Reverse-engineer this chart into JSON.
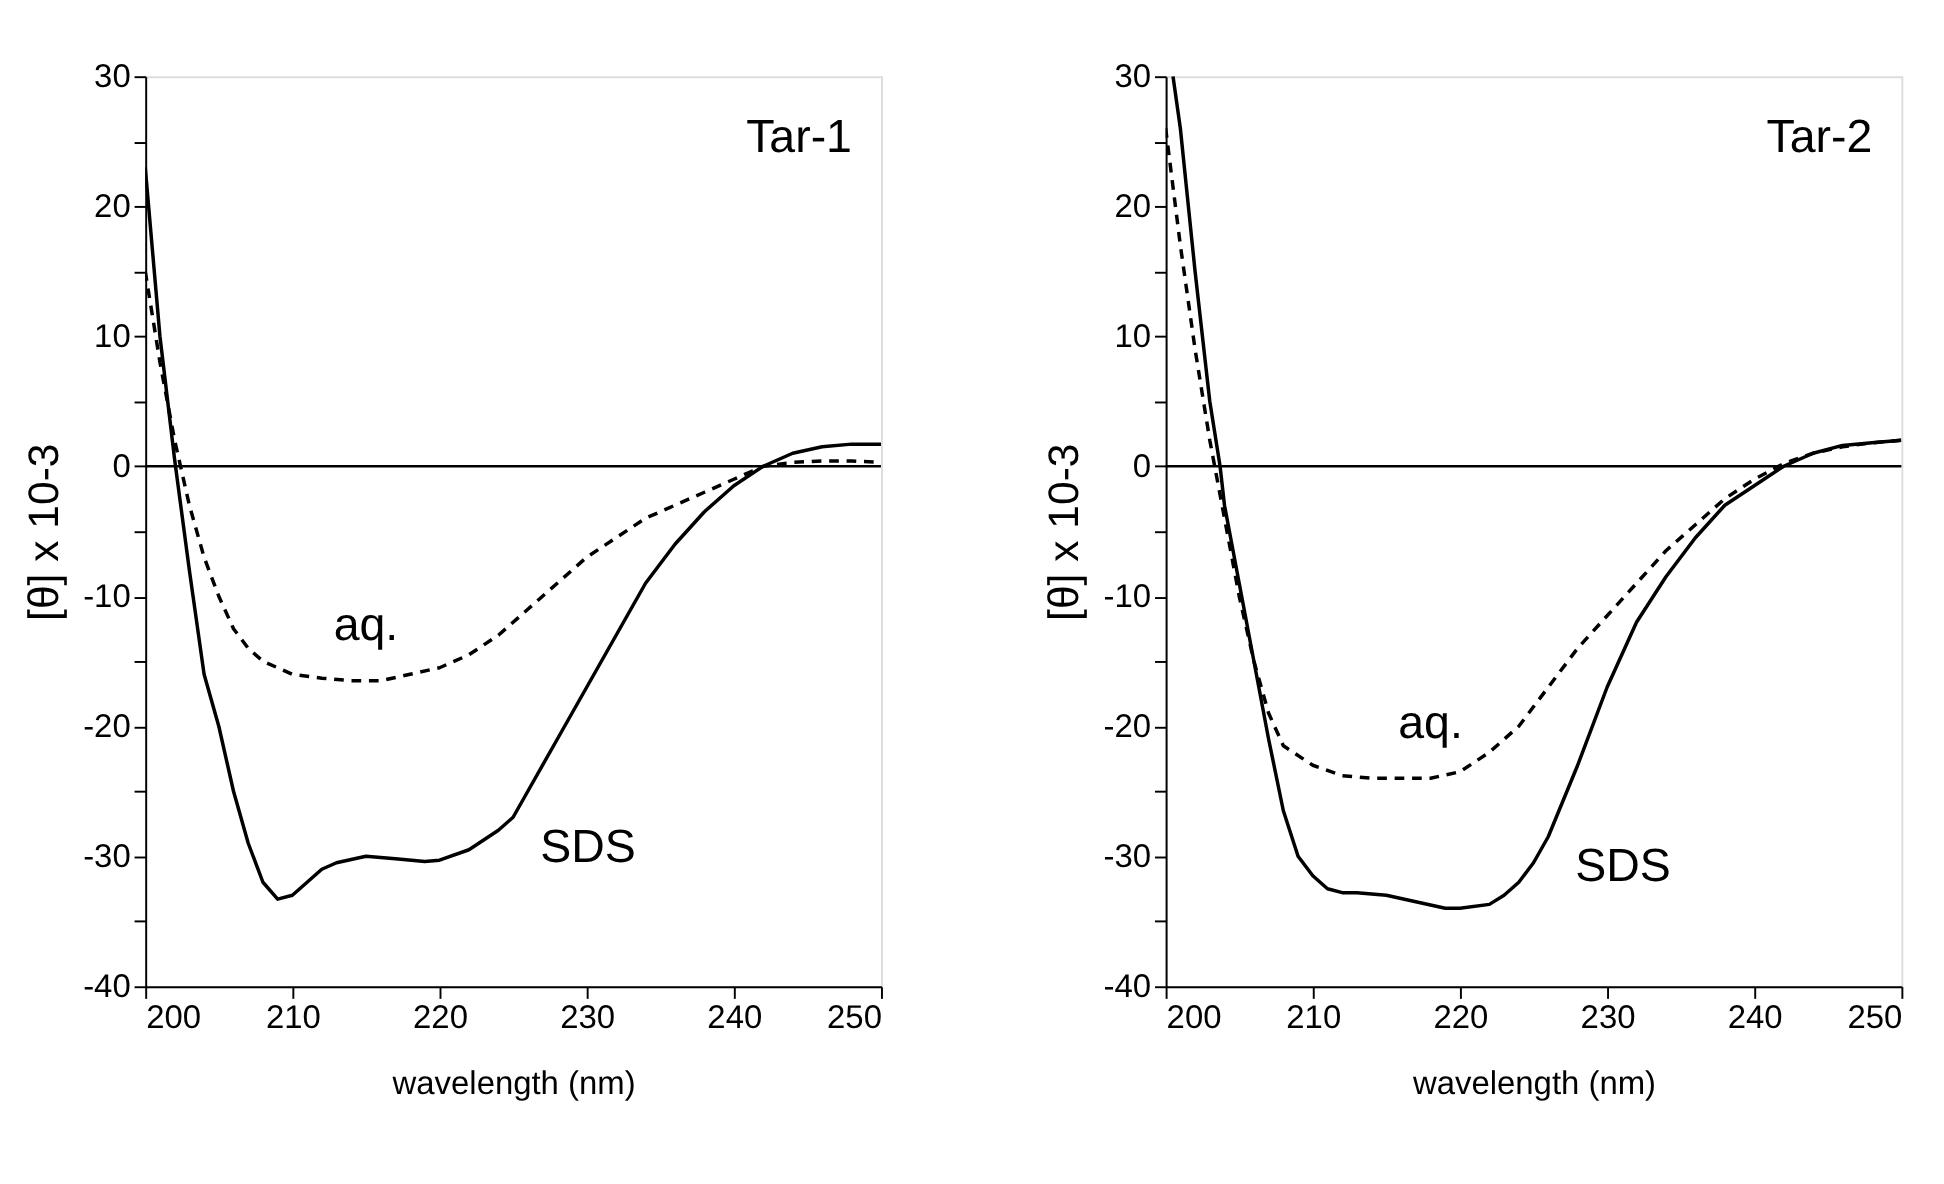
{
  "chart_data": [
    {
      "type": "line",
      "xlabel": "wavelength (nm)",
      "ylabel": "[θ] x 10-3",
      "xlim": [
        200,
        250
      ],
      "xticks": [
        200,
        210,
        220,
        230,
        240,
        250
      ],
      "ylim": [
        -40,
        30
      ],
      "yticks": [
        -40,
        {
          "value": -35,
          "label": null
        },
        -30,
        {
          "value": -25,
          "label": null
        },
        -20,
        {
          "value": -15,
          "label": null
        },
        -10,
        {
          "value": -5,
          "label": null
        },
        0,
        {
          "value": 5,
          "label": null
        },
        10,
        {
          "value": 15,
          "label": null
        },
        20,
        {
          "value": 25,
          "label": null
        },
        30
      ],
      "grid": false,
      "marker": "none",
      "ref_lines": [
        {
          "axis": "y",
          "value": 0,
          "color": "#000000"
        }
      ],
      "annotations": [
        "Tar-1",
        {
          "text": "aq.",
          "x": 215,
          "y": -16.5
        },
        {
          "text": "SDS",
          "x": 225,
          "y": -27
        }
      ],
      "series": [
        {
          "color": "#000000",
          "line_style": "solid",
          "x": [
            200,
            201,
            202,
            203,
            204,
            205,
            206,
            207,
            208,
            209,
            210,
            211,
            212,
            213,
            215,
            217,
            219,
            220,
            222,
            224,
            225,
            226,
            228,
            230,
            232,
            234,
            236,
            238,
            240,
            242,
            244,
            246,
            248,
            250
          ],
          "values": [
            23,
            10,
            0.5,
            -8,
            -16,
            -20,
            -25,
            -29,
            -32,
            -33.3,
            -33,
            -32,
            -31,
            -30.5,
            -30,
            -30.2,
            -30.4,
            -30.3,
            -29.5,
            -28,
            -27,
            -25,
            -21,
            -17,
            -13,
            -9,
            -6,
            -3.5,
            -1.5,
            0,
            1,
            1.5,
            1.7,
            1.7
          ]
        },
        {
          "color": "#000000",
          "line_style": "dashed",
          "x": [
            200,
            201,
            202,
            203,
            204,
            205,
            206,
            207,
            208,
            210,
            212,
            214,
            215,
            216,
            218,
            220,
            222,
            224,
            226,
            228,
            230,
            232,
            234,
            236,
            238,
            240,
            242,
            244,
            246,
            248,
            250
          ],
          "values": [
            15,
            8,
            2,
            -3,
            -7,
            -10,
            -12.5,
            -14,
            -15,
            -16,
            -16.3,
            -16.5,
            -16.5,
            -16.5,
            -16,
            -15.5,
            -14.5,
            -13,
            -11,
            -9,
            -7,
            -5.5,
            -4,
            -3,
            -2,
            -1,
            0,
            0.3,
            0.4,
            0.4,
            0.3
          ]
        }
      ]
    },
    {
      "type": "line",
      "xlabel": "wavelength (nm)",
      "ylabel": "[θ] x 10-3",
      "xlim": [
        200,
        250
      ],
      "xticks": [
        200,
        210,
        220,
        230,
        240,
        250
      ],
      "ylim": [
        -40,
        30
      ],
      "yticks": [
        -40,
        {
          "value": -35,
          "label": null
        },
        -30,
        {
          "value": -25,
          "label": null
        },
        -20,
        {
          "value": -15,
          "label": null
        },
        -10,
        {
          "value": -5,
          "label": null
        },
        0,
        {
          "value": 5,
          "label": null
        },
        10,
        {
          "value": 15,
          "label": null
        },
        20,
        {
          "value": 25,
          "label": null
        },
        30
      ],
      "grid": false,
      "marker": "none",
      "ref_lines": [
        {
          "axis": "y",
          "value": 0,
          "color": "#000000"
        }
      ],
      "annotations": [
        "Tar-2",
        {
          "text": "aq.",
          "x": 218,
          "y": -24
        },
        {
          "text": "SDS",
          "x": 226,
          "y": -28.5
        }
      ],
      "series": [
        {
          "color": "#000000",
          "line_style": "solid",
          "x": [
            200.5,
            201,
            202,
            203,
            203.7,
            204,
            205,
            206,
            207,
            208,
            209,
            210,
            211,
            212,
            213,
            215,
            217,
            219,
            220,
            222,
            223,
            224,
            225,
            226,
            228,
            230,
            232,
            234,
            236,
            238,
            240,
            242,
            244,
            246,
            248,
            250
          ],
          "values": [
            30,
            26,
            15,
            5,
            0,
            -3,
            -9,
            -15,
            -21,
            -26.5,
            -30,
            -31.5,
            -32.5,
            -32.8,
            -32.8,
            -33,
            -33.5,
            -34,
            -34,
            -33.7,
            -33,
            -32,
            -30.5,
            -28.5,
            -23,
            -17,
            -12,
            -8.5,
            -5.5,
            -3,
            -1.5,
            0,
            1,
            1.6,
            1.8,
            2
          ]
        },
        {
          "color": "#000000",
          "line_style": "dashed",
          "x": [
            200,
            201,
            202,
            203,
            204,
            205,
            206,
            207,
            208,
            210,
            212,
            214,
            216,
            218,
            220,
            222,
            224,
            226,
            228,
            230,
            232,
            234,
            236,
            238,
            240,
            242,
            244,
            246,
            248,
            250
          ],
          "values": [
            26,
            17,
            9,
            2,
            -4,
            -10,
            -15,
            -19,
            -21.5,
            -23,
            -23.8,
            -24,
            -24,
            -24,
            -23.5,
            -22,
            -20,
            -17,
            -14,
            -11.5,
            -9,
            -6.5,
            -4.5,
            -2.5,
            -1,
            0.2,
            1,
            1.5,
            1.8,
            2
          ]
        }
      ]
    }
  ]
}
